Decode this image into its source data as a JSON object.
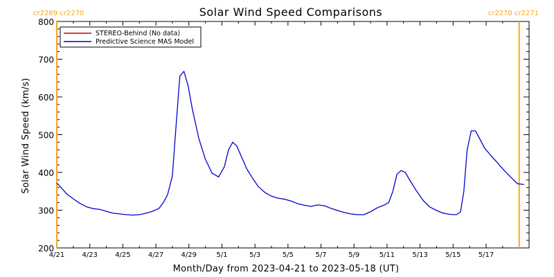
{
  "chart_data": {
    "type": "line",
    "title": "Solar Wind Speed Comparisons",
    "xlabel": "Month/Day from 2023-04-21 to 2023-05-18 (UT)",
    "ylabel": "Solar Wind Speed (km/s)",
    "xlim": [
      0,
      28.6
    ],
    "ylim": [
      200,
      800
    ],
    "grid": false,
    "legend_position": "top-left",
    "xtick_values": [
      0,
      2,
      4,
      6,
      8,
      10,
      12,
      14,
      16,
      18,
      20,
      22,
      24,
      26
    ],
    "xtick_labels": [
      "4/21",
      "4/23",
      "4/25",
      "4/27",
      "4/29",
      "5/1",
      "5/3",
      "5/5",
      "5/7",
      "5/9",
      "5/11",
      "5/13",
      "5/15",
      "5/17"
    ],
    "ytick_values": [
      200,
      300,
      400,
      500,
      600,
      700,
      800
    ],
    "ytick_labels": [
      "200",
      "300",
      "400",
      "500",
      "600",
      "700",
      "800"
    ],
    "series": [
      {
        "name": "STEREO-Behind (No data)",
        "color": "#cc0000",
        "x": [],
        "y": []
      },
      {
        "name": "Predictive Science MAS Model",
        "color": "#0000cc",
        "x": [
          0.0,
          0.3,
          0.6,
          1.0,
          1.4,
          1.8,
          2.2,
          2.6,
          3.0,
          3.4,
          3.8,
          4.2,
          4.6,
          5.0,
          5.4,
          5.8,
          6.2,
          6.45,
          6.7,
          7.0,
          7.2,
          7.45,
          7.7,
          7.95,
          8.2,
          8.6,
          9.0,
          9.4,
          9.8,
          10.15,
          10.4,
          10.65,
          10.9,
          11.2,
          11.5,
          11.85,
          12.2,
          12.6,
          13.0,
          13.4,
          13.8,
          14.2,
          14.6,
          15.0,
          15.4,
          15.8,
          16.2,
          16.6,
          17.0,
          17.4,
          17.8,
          18.2,
          18.6,
          19.0,
          19.4,
          19.8,
          20.1,
          20.35,
          20.6,
          20.85,
          21.1,
          21.4,
          21.8,
          22.2,
          22.6,
          23.0,
          23.4,
          23.8,
          24.2,
          24.45,
          24.65,
          24.85,
          25.1,
          25.35,
          25.6,
          25.9,
          26.3,
          26.7,
          27.1,
          27.5,
          27.9,
          28.3
        ],
        "y": [
          372,
          358,
          343,
          330,
          318,
          309,
          304,
          302,
          297,
          292,
          290,
          288,
          287,
          288,
          292,
          297,
          305,
          320,
          340,
          390,
          510,
          655,
          668,
          630,
          570,
          490,
          435,
          398,
          388,
          415,
          460,
          480,
          470,
          440,
          410,
          385,
          363,
          347,
          337,
          332,
          329,
          324,
          317,
          313,
          310,
          314,
          312,
          305,
          299,
          294,
          290,
          288,
          288,
          296,
          306,
          313,
          320,
          350,
          395,
          405,
          400,
          378,
          350,
          325,
          308,
          299,
          292,
          289,
          288,
          295,
          350,
          460,
          510,
          510,
          490,
          465,
          444,
          425,
          405,
          387,
          370,
          368
        ]
      }
    ],
    "vertical_markers": [
      {
        "x": 0.0,
        "color": "#f5a623"
      },
      {
        "x": 28.0,
        "color": "#f5a623"
      }
    ],
    "corner_labels": {
      "top_left": "cr2269 cr2270",
      "top_right": "cr2270 cr2271"
    }
  }
}
